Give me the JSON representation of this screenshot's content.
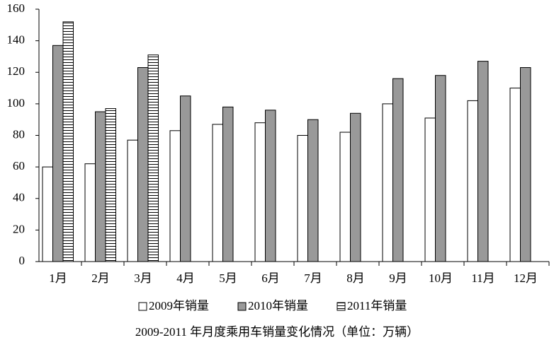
{
  "chart_data": {
    "type": "bar",
    "caption": "2009-2011 年月度乘用车销量变化情况（单位：万辆）",
    "categories": [
      "1月",
      "2月",
      "3月",
      "4月",
      "5月",
      "6月",
      "7月",
      "8月",
      "9月",
      "10月",
      "11月",
      "12月"
    ],
    "series": [
      {
        "name": "2009年销量",
        "color": "#ffffff",
        "values": [
          60,
          62,
          77,
          83,
          87,
          88,
          80,
          82,
          100,
          91,
          102,
          110
        ]
      },
      {
        "name": "2010年销量",
        "color": "#999999",
        "values": [
          137,
          95,
          123,
          105,
          98,
          96,
          90,
          94,
          116,
          118,
          127,
          123
        ]
      },
      {
        "name": "2011年销量",
        "color": "#000000",
        "pattern": "horizontal-stripes",
        "values": [
          152,
          97,
          131,
          null,
          null,
          null,
          null,
          null,
          null,
          null,
          null,
          null
        ]
      }
    ],
    "ylim": [
      0,
      160
    ],
    "yticks": [
      0,
      20,
      40,
      60,
      80,
      100,
      120,
      140,
      160
    ],
    "grid": false,
    "legend": "bottom"
  }
}
